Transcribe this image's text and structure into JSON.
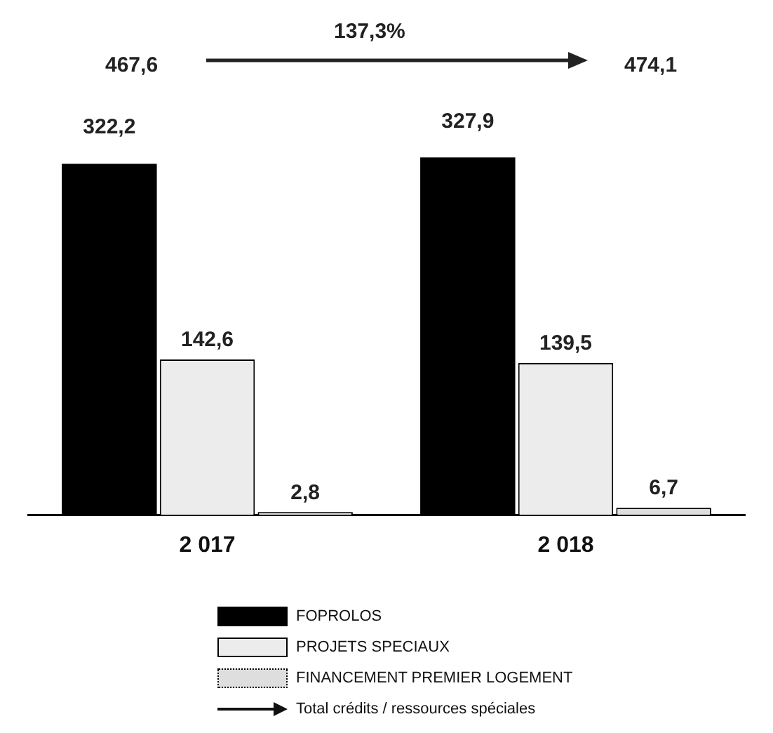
{
  "chart_data": {
    "type": "bar",
    "categories": [
      "2 017",
      "2 018"
    ],
    "series": [
      {
        "name": "FOPROLOS",
        "color": "#000000",
        "values": [
          322.2,
          327.9
        ],
        "value_labels": [
          "322,2",
          "327,9"
        ]
      },
      {
        "name": "PROJETS SPECIAUX",
        "color": "#ececec",
        "values": [
          142.6,
          139.5
        ],
        "value_labels": [
          "142,6",
          "139,5"
        ]
      },
      {
        "name": "FINANCEMENT PREMIER LOGEMENT",
        "color": "#dedede",
        "values": [
          2.8,
          6.7
        ],
        "value_labels": [
          "2,8",
          "6,7"
        ]
      }
    ],
    "annotations": [
      "467,6",
      "137,3%",
      "474,1",
      "Total crédits / ressources spéciales"
    ],
    "legend": "bottom",
    "grid": false,
    "tick_labels": "x"
  }
}
